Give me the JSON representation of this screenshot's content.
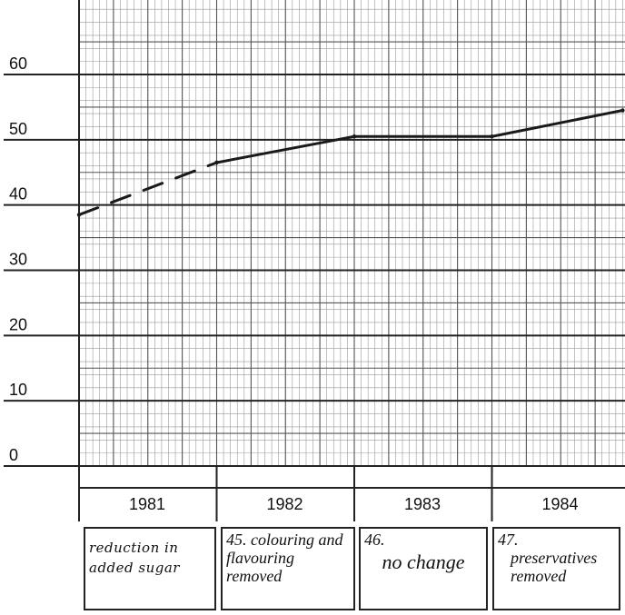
{
  "chart_data": {
    "type": "line",
    "title": "",
    "xlabel": "",
    "ylabel": "",
    "ylim": [
      0,
      68
    ],
    "y_ticks": [
      0,
      10,
      20,
      30,
      40,
      50,
      60
    ],
    "y_tick_labels": [
      "0",
      "10",
      "20",
      "30",
      "40",
      "50",
      "60"
    ],
    "categories": [
      "1981",
      "1982",
      "1983",
      "1984"
    ],
    "xlim": [
      1981,
      1985
    ],
    "grid": true,
    "series": [
      {
        "style": "dashed",
        "x": [
          1981.0,
          1982.0
        ],
        "y": [
          38.5,
          46.5
        ]
      },
      {
        "style": "solid",
        "x": [
          1982.0,
          1983.0,
          1984.0,
          1984.95
        ],
        "y": [
          46.5,
          50.5,
          50.5,
          54.5
        ]
      }
    ],
    "annotations": [
      {
        "number": "",
        "text": "reduction in added sugar"
      },
      {
        "number": "45.",
        "text": "colouring and flavouring removed"
      },
      {
        "number": "46.",
        "text": "no change"
      },
      {
        "number": "47.",
        "text": "preservatives removed"
      }
    ]
  }
}
